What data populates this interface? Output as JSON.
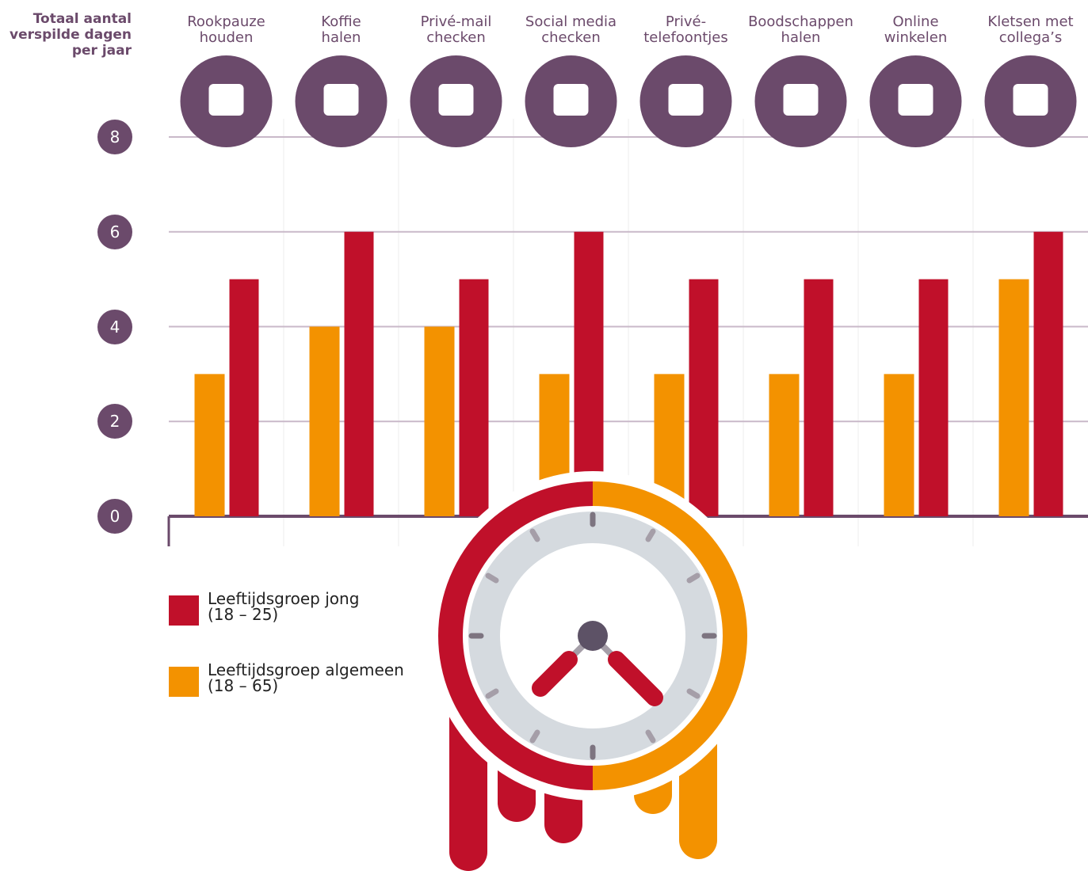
{
  "chart_data": {
    "type": "bar",
    "y_label": "Totaal aantal\nverspilde dagen\nper jaar",
    "categories": [
      "Rookpauze\nhouden",
      "Koffie\nhalen",
      "Privé-mail\nchecken",
      "Social media\nchecken",
      "Privé-\ntelefoontjes",
      "Boodschappen\nhalen",
      "Online\nwinkelen",
      "Kletsen met\ncollega’s"
    ],
    "series": [
      {
        "name": "Leeftijdsgroep algemeen\n(18 – 65)",
        "color": "#f39200",
        "values": [
          3,
          4,
          4,
          3,
          3,
          3,
          3,
          5
        ]
      },
      {
        "name": "Leeftijdsgroep jong\n(18 – 25)",
        "color": "#c0102a",
        "values": [
          5,
          6,
          5,
          6,
          5,
          5,
          5,
          6
        ]
      }
    ],
    "ylim": [
      0,
      8
    ],
    "yticks": [
      0,
      2,
      4,
      6,
      8
    ],
    "grid": true
  }
}
